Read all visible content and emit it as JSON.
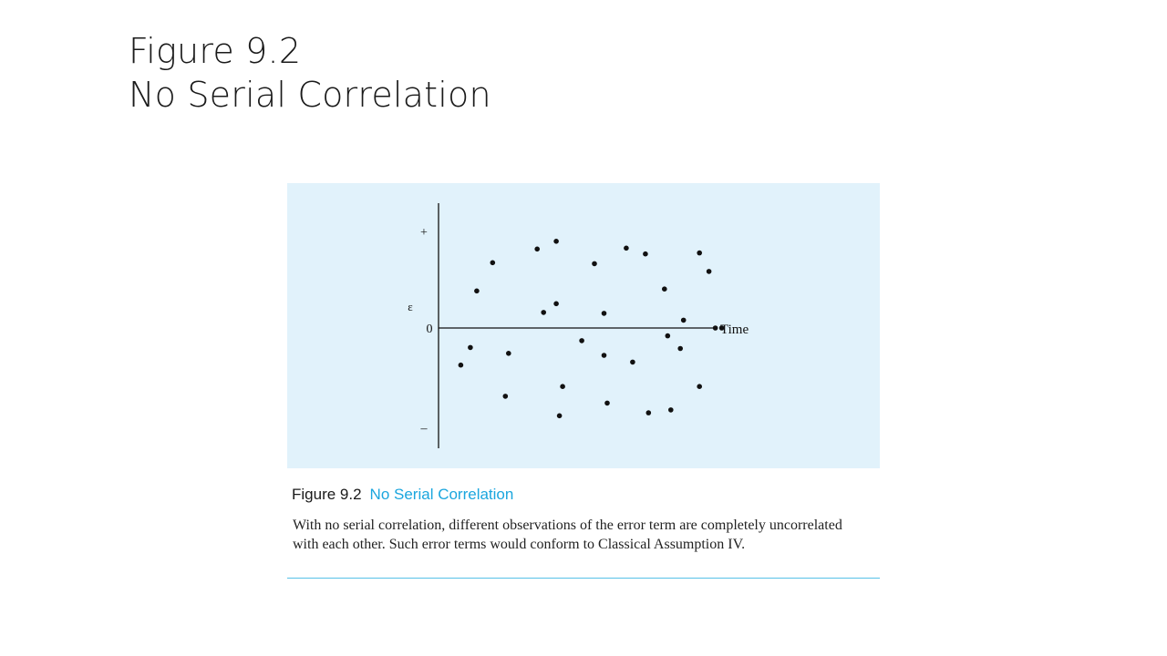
{
  "slide": {
    "title_line1": "Figure 9.2",
    "title_line2": "No Serial Correlation"
  },
  "figure": {
    "caption_number": "Figure 9.2",
    "caption_title": "No Serial Correlation",
    "caption_text": "With no serial correlation, different observations of the error term are completely uncorrelated with each other. Such error terms would conform to Classical Assumption IV."
  },
  "colors": {
    "panel_background": "#e1f2fb",
    "caption_accent": "#1ba6de",
    "points": "#111111"
  },
  "chart_data": {
    "type": "scatter",
    "title": "",
    "xlabel": "Time",
    "ylabel": "ε",
    "y_ticks": [
      "+",
      "0",
      "–"
    ],
    "grid": false,
    "xlim": [
      0,
      1
    ],
    "ylim": [
      -1,
      1
    ],
    "x": [
      0.07,
      0.1,
      0.12,
      0.17,
      0.21,
      0.22,
      0.31,
      0.33,
      0.37,
      0.37,
      0.38,
      0.39,
      0.45,
      0.49,
      0.52,
      0.52,
      0.53,
      0.59,
      0.61,
      0.65,
      0.66,
      0.71,
      0.72,
      0.73,
      0.76,
      0.77,
      0.82,
      0.82,
      0.85,
      0.87,
      0.89
    ],
    "y": [
      -0.38,
      -0.2,
      0.38,
      0.67,
      -0.7,
      -0.26,
      0.81,
      0.16,
      0.89,
      0.25,
      -0.9,
      -0.6,
      -0.13,
      0.66,
      -0.28,
      0.15,
      -0.77,
      0.82,
      -0.35,
      0.76,
      -0.87,
      0.4,
      -0.08,
      -0.84,
      -0.21,
      0.08,
      0.77,
      -0.6,
      0.58,
      0.0,
      0.0
    ]
  }
}
